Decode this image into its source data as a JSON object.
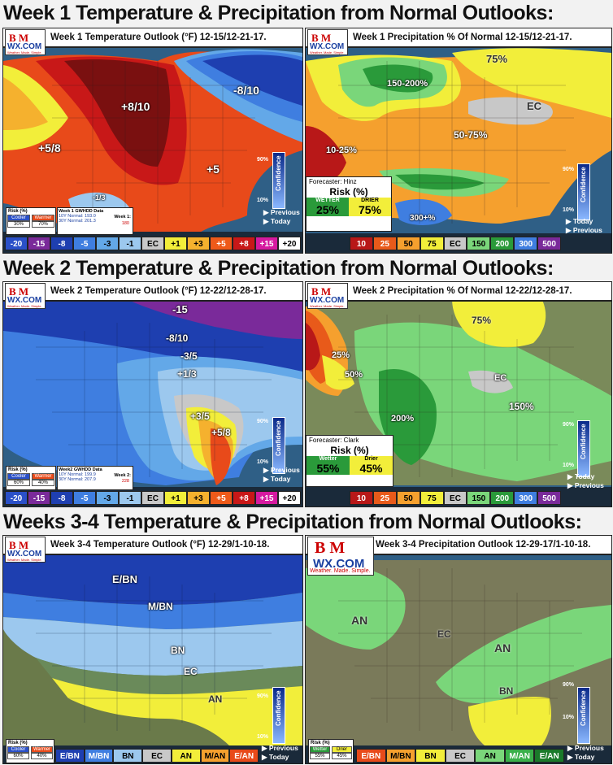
{
  "sections": [
    {
      "title": "Week 1 Temperature & Precipitation from Normal Outlooks:"
    },
    {
      "title": "Week 2 Temperature & Precipitation from Normal Outlooks:"
    },
    {
      "title": "Weeks 3-4 Temperature & Precipitation from Normal Outlooks:"
    }
  ],
  "logo": {
    "bm": "B M",
    "wx": "WX.COM",
    "tagline": "Weather. Made. Simple."
  },
  "common": {
    "previous": "Previous",
    "today": "Today",
    "confidence": "Confidence",
    "conf_high": "90%",
    "conf_low": "10%",
    "risk_title": "Risk (%)"
  },
  "panels": {
    "w1_temp": {
      "title": "Week 1 Temperature Outlook (°F) 12-15/12-21-17.",
      "labels": [
        "+8/10",
        "-8/10",
        "+5/8",
        "+5",
        "-1/3"
      ],
      "risk": {
        "title": "Risk (%)",
        "heads": [
          "Cooler",
          "Warmer"
        ],
        "vals": [
          "30%",
          "70%"
        ]
      },
      "hdd": {
        "title": "Week 1 GWHDD Data",
        "lines": [
          "10Y Normal: 193.0",
          "30Y Normal: 201.3"
        ],
        "wk_label": "Week 1:",
        "wk_val": "180"
      },
      "legend": [
        {
          "t": "-20",
          "c": "#2a50c8"
        },
        {
          "t": "-15",
          "c": "#7a2a9a"
        },
        {
          "t": "-8",
          "c": "#1e3fb0"
        },
        {
          "t": "-5",
          "c": "#3f7ee0"
        },
        {
          "t": "-3",
          "c": "#63a8e8"
        },
        {
          "t": "-1",
          "c": "#9cc8ee"
        },
        {
          "t": "EC",
          "c": "#c8c8c8"
        },
        {
          "t": "+1",
          "c": "#f2ee3a"
        },
        {
          "t": "+3",
          "c": "#f5b12e"
        },
        {
          "t": "+5",
          "c": "#ee5a1a"
        },
        {
          "t": "+8",
          "c": "#c81818"
        },
        {
          "t": "+15",
          "c": "#d61aa0"
        },
        {
          "t": "+20",
          "c": "#ffffff"
        }
      ]
    },
    "w1_precip": {
      "title": "Week 1 Precipitation % Of Normal 12-15/12-21-17.",
      "labels": [
        "75%",
        "150-200%",
        "EC",
        "50-75%",
        "10-25%",
        "300+%"
      ],
      "forecaster": "Forecaster: Hinz",
      "risk": {
        "heads": [
          "WETTER",
          "DRIER"
        ],
        "vals": [
          "25%",
          "75%"
        ]
      },
      "legend": [
        {
          "t": "10",
          "c": "#b81818"
        },
        {
          "t": "25",
          "c": "#e85a1a"
        },
        {
          "t": "50",
          "c": "#f5a02e"
        },
        {
          "t": "75",
          "c": "#f2ee3a"
        },
        {
          "t": "EC",
          "c": "#c8c8c8"
        },
        {
          "t": "150",
          "c": "#7ad67a"
        },
        {
          "t": "200",
          "c": "#2a9a3a"
        },
        {
          "t": "300",
          "c": "#3f7ee0"
        },
        {
          "t": "500",
          "c": "#7a2a9a"
        }
      ]
    },
    "w2_temp": {
      "title": "Week 2 Temperature Outlook (°F) 12-22/12-28-17.",
      "labels": [
        "-15",
        "-8/10",
        "-3/5",
        "+1/3",
        "+3/5",
        "+5/8"
      ],
      "risk": {
        "title": "Risk (%)",
        "heads": [
          "Cooler",
          "Warmer"
        ],
        "vals": [
          "60%",
          "40%"
        ]
      },
      "hdd": {
        "title": "Week2 GWHDD Data",
        "lines": [
          "10Y Normal: 199.9",
          "30Y Normal: 207.9"
        ],
        "wk_label": "Week 2:",
        "wk_val": "228"
      },
      "legend": [
        {
          "t": "-20",
          "c": "#2a50c8"
        },
        {
          "t": "-15",
          "c": "#7a2a9a"
        },
        {
          "t": "-8",
          "c": "#1e3fb0"
        },
        {
          "t": "-5",
          "c": "#3f7ee0"
        },
        {
          "t": "-3",
          "c": "#63a8e8"
        },
        {
          "t": "-1",
          "c": "#9cc8ee"
        },
        {
          "t": "EC",
          "c": "#c8c8c8"
        },
        {
          "t": "+1",
          "c": "#f2ee3a"
        },
        {
          "t": "+3",
          "c": "#f5b12e"
        },
        {
          "t": "+5",
          "c": "#ee5a1a"
        },
        {
          "t": "+8",
          "c": "#c81818"
        },
        {
          "t": "+15",
          "c": "#d61aa0"
        },
        {
          "t": "+20",
          "c": "#ffffff"
        }
      ]
    },
    "w2_precip": {
      "title": "Week 2 Precipitation % Of Normal 12-22/12-28-17.",
      "labels": [
        "75%",
        "25%",
        "50%",
        "EC",
        "150%",
        "200%"
      ],
      "forecaster": "Forecaster: Clark",
      "risk": {
        "heads": [
          "Wetter",
          "Drier"
        ],
        "vals": [
          "55%",
          "45%"
        ]
      },
      "legend": [
        {
          "t": "10",
          "c": "#b81818"
        },
        {
          "t": "25",
          "c": "#e85a1a"
        },
        {
          "t": "50",
          "c": "#f5a02e"
        },
        {
          "t": "75",
          "c": "#f2ee3a"
        },
        {
          "t": "EC",
          "c": "#c8c8c8"
        },
        {
          "t": "150",
          "c": "#7ad67a"
        },
        {
          "t": "200",
          "c": "#2a9a3a"
        },
        {
          "t": "300",
          "c": "#3f7ee0"
        },
        {
          "t": "500",
          "c": "#7a2a9a"
        }
      ]
    },
    "w34_temp": {
      "title": "Week 3-4 Temperature Outlook (°F) 12-29/1-10-18.",
      "labels": [
        "E/BN",
        "M/BN",
        "BN",
        "EC",
        "AN"
      ],
      "risk": {
        "title": "Risk (%)",
        "heads": [
          "Cooler",
          "Warmer"
        ],
        "vals": [
          "60%",
          "40%"
        ]
      },
      "legend": [
        {
          "t": "E/BN",
          "c": "#1e3fb0"
        },
        {
          "t": "M/BN",
          "c": "#3f7ee0"
        },
        {
          "t": "BN",
          "c": "#9cc8ee"
        },
        {
          "t": "EC",
          "c": "#c8c8c8"
        },
        {
          "t": "AN",
          "c": "#f2ee3a"
        },
        {
          "t": "M/AN",
          "c": "#f5a02e"
        },
        {
          "t": "E/AN",
          "c": "#e84a1a"
        }
      ]
    },
    "w34_precip": {
      "title": "Week 3-4 Precipitation Outlook 12-29-17/1-10-18.",
      "labels": [
        "AN",
        "EC",
        "AN",
        "BN"
      ],
      "risk": {
        "title": "Risk (%)",
        "heads": [
          "Wetter",
          "Drier"
        ],
        "vals": [
          "55%",
          "45%"
        ]
      },
      "legend": [
        {
          "t": "E/BN",
          "c": "#e84a1a"
        },
        {
          "t": "M/BN",
          "c": "#f5a02e"
        },
        {
          "t": "BN",
          "c": "#f2ee3a"
        },
        {
          "t": "EC",
          "c": "#c8c8c8"
        },
        {
          "t": "AN",
          "c": "#7ad67a"
        },
        {
          "t": "M/AN",
          "c": "#3ab04a"
        },
        {
          "t": "E/AN",
          "c": "#1a7a2a"
        }
      ]
    }
  }
}
